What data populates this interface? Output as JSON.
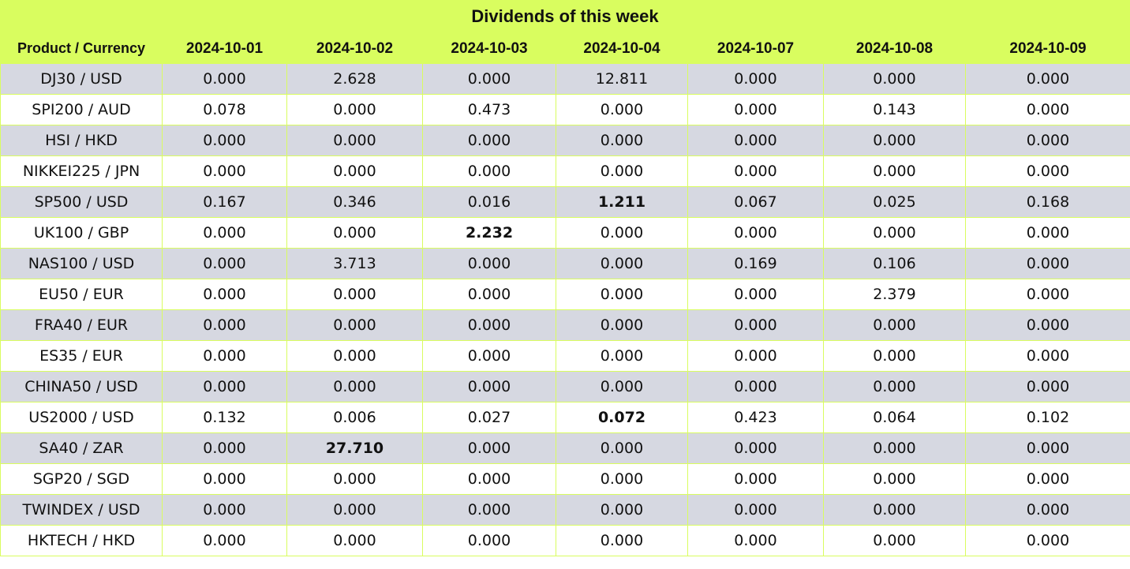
{
  "title": "Dividends of this week",
  "header": {
    "product_col": "Product / Currency",
    "dates": [
      "2024-10-01",
      "2024-10-02",
      "2024-10-03",
      "2024-10-04",
      "2024-10-07",
      "2024-10-08",
      "2024-10-09"
    ]
  },
  "rows": [
    {
      "product": "DJ30 / USD",
      "values": [
        "0.000",
        "2.628",
        "0.000",
        "12.811",
        "0.000",
        "0.000",
        "0.000"
      ],
      "bold": []
    },
    {
      "product": "SPI200 / AUD",
      "values": [
        "0.078",
        "0.000",
        "0.473",
        "0.000",
        "0.000",
        "0.143",
        "0.000"
      ],
      "bold": []
    },
    {
      "product": "HSI / HKD",
      "values": [
        "0.000",
        "0.000",
        "0.000",
        "0.000",
        "0.000",
        "0.000",
        "0.000"
      ],
      "bold": []
    },
    {
      "product": "NIKKEI225 / JPN",
      "values": [
        "0.000",
        "0.000",
        "0.000",
        "0.000",
        "0.000",
        "0.000",
        "0.000"
      ],
      "bold": []
    },
    {
      "product": "SP500 / USD",
      "values": [
        "0.167",
        "0.346",
        "0.016",
        "1.211",
        "0.067",
        "0.025",
        "0.168"
      ],
      "bold": [
        3
      ]
    },
    {
      "product": "UK100 / GBP",
      "values": [
        "0.000",
        "0.000",
        "2.232",
        "0.000",
        "0.000",
        "0.000",
        "0.000"
      ],
      "bold": [
        2
      ]
    },
    {
      "product": "NAS100 / USD",
      "values": [
        "0.000",
        "3.713",
        "0.000",
        "0.000",
        "0.169",
        "0.106",
        "0.000"
      ],
      "bold": []
    },
    {
      "product": "EU50 / EUR",
      "values": [
        "0.000",
        "0.000",
        "0.000",
        "0.000",
        "0.000",
        "2.379",
        "0.000"
      ],
      "bold": []
    },
    {
      "product": "FRA40 / EUR",
      "values": [
        "0.000",
        "0.000",
        "0.000",
        "0.000",
        "0.000",
        "0.000",
        "0.000"
      ],
      "bold": []
    },
    {
      "product": "ES35 / EUR",
      "values": [
        "0.000",
        "0.000",
        "0.000",
        "0.000",
        "0.000",
        "0.000",
        "0.000"
      ],
      "bold": []
    },
    {
      "product": "CHINA50 / USD",
      "values": [
        "0.000",
        "0.000",
        "0.000",
        "0.000",
        "0.000",
        "0.000",
        "0.000"
      ],
      "bold": []
    },
    {
      "product": "US2000 / USD",
      "values": [
        "0.132",
        "0.006",
        "0.027",
        "0.072",
        "0.423",
        "0.064",
        "0.102"
      ],
      "bold": [
        3
      ]
    },
    {
      "product": "SA40 / ZAR",
      "values": [
        "0.000",
        "27.710",
        "0.000",
        "0.000",
        "0.000",
        "0.000",
        "0.000"
      ],
      "bold": [
        1
      ]
    },
    {
      "product": "SGP20 / SGD",
      "values": [
        "0.000",
        "0.000",
        "0.000",
        "0.000",
        "0.000",
        "0.000",
        "0.000"
      ],
      "bold": []
    },
    {
      "product": "TWINDEX / USD",
      "values": [
        "0.000",
        "0.000",
        "0.000",
        "0.000",
        "0.000",
        "0.000",
        "0.000"
      ],
      "bold": []
    },
    {
      "product": "HKTECH / HKD",
      "values": [
        "0.000",
        "0.000",
        "0.000",
        "0.000",
        "0.000",
        "0.000",
        "0.000"
      ],
      "bold": []
    }
  ],
  "colors": {
    "header_bg": "#d9fd5f",
    "row_shade": "#d6d8e1",
    "row_plain": "#ffffff"
  }
}
